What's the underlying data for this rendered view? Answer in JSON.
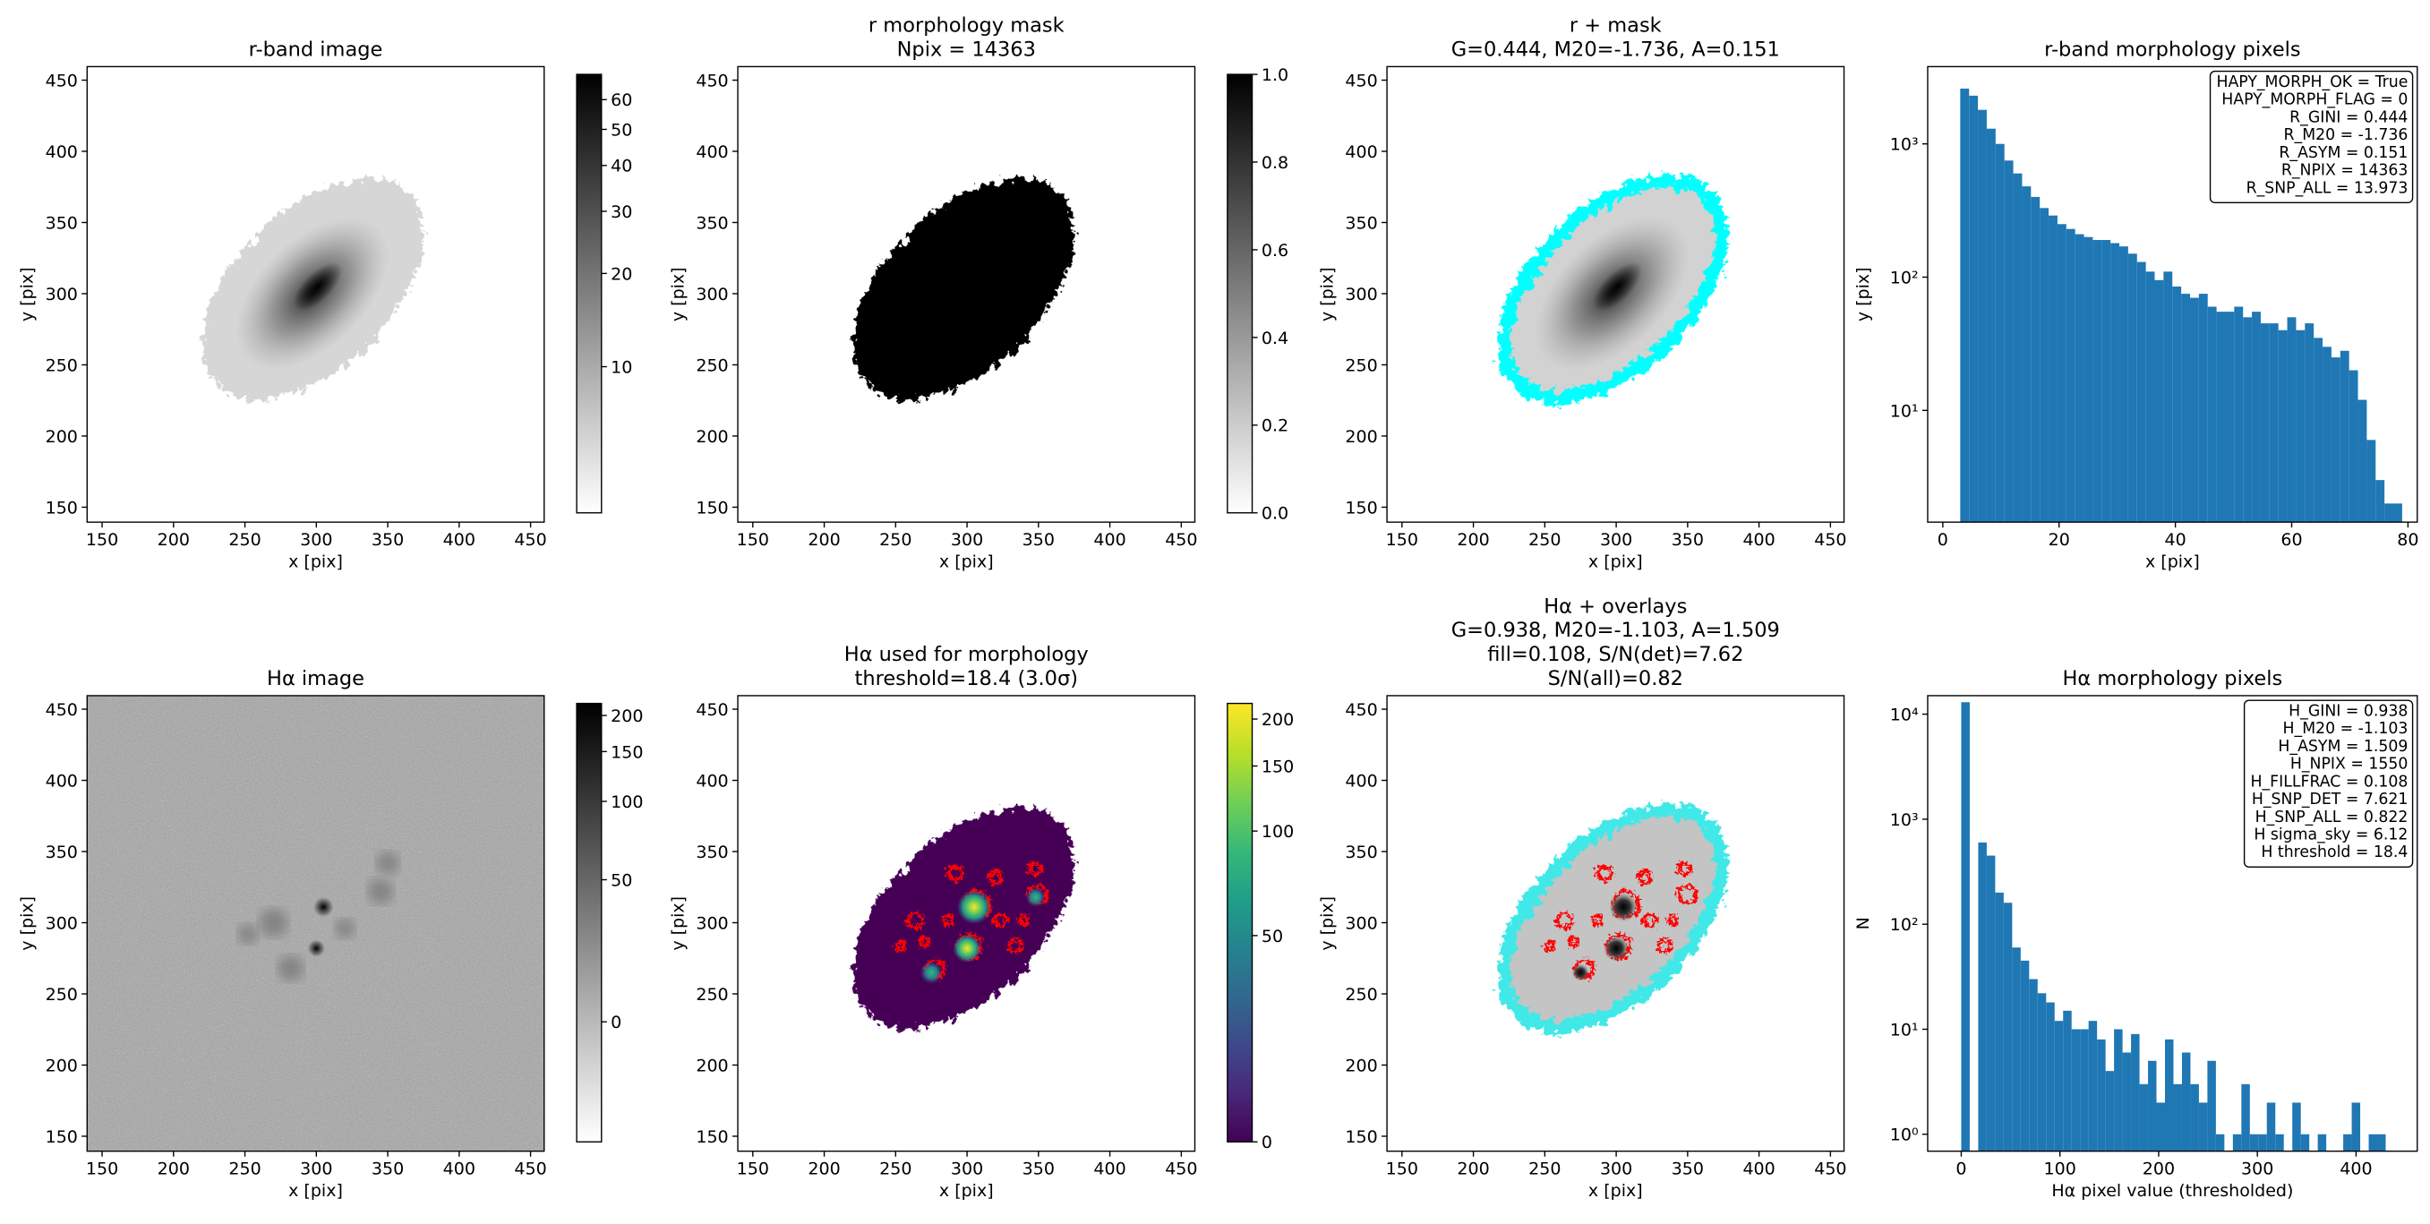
{
  "chart_data": [
    {
      "type": "image",
      "image": "r",
      "title": [
        "r-band image"
      ],
      "xlabel": "x [pix]",
      "ylabel": "y [pix]",
      "xlim": [
        139.5,
        459.5
      ],
      "ylim": [
        139.5,
        459.5
      ],
      "xticks": [
        150,
        200,
        250,
        300,
        350,
        400,
        450
      ],
      "yticks": [
        150,
        200,
        250,
        300,
        350,
        400,
        450
      ],
      "colorbar": {
        "colormap": "gray_r",
        "stretch": "asinh",
        "clim": [
          0,
          70
        ],
        "ticks": [
          10,
          20,
          30,
          40,
          50,
          60
        ]
      }
    },
    {
      "type": "image",
      "image": "mask",
      "title": [
        "r morphology mask",
        "Npix = 14363"
      ],
      "xlabel": "x [pix]",
      "ylabel": "y [pix]",
      "xlim": [
        139.5,
        459.5
      ],
      "ylim": [
        139.5,
        459.5
      ],
      "xticks": [
        150,
        200,
        250,
        300,
        350,
        400,
        450
      ],
      "yticks": [
        150,
        200,
        250,
        300,
        350,
        400,
        450
      ],
      "colorbar": {
        "colormap": "gray_r",
        "stretch": "linear",
        "clim": [
          0,
          1
        ],
        "ticks": [
          {
            "value": 0,
            "label": "0.0"
          },
          0.2,
          0.4,
          0.6,
          0.8,
          {
            "value": 1,
            "label": "1.0"
          }
        ]
      }
    },
    {
      "type": "image",
      "image": "rmask",
      "title": [
        "r + mask",
        "G=0.444, M20=-1.736, A=0.151"
      ],
      "xlabel": "x [pix]",
      "ylabel": "y [pix]",
      "xlim": [
        139.5,
        459.5
      ],
      "ylim": [
        139.5,
        459.5
      ],
      "xticks": [
        150,
        200,
        250,
        300,
        350,
        400,
        450
      ],
      "yticks": [
        150,
        200,
        250,
        300,
        350,
        400,
        450
      ]
    },
    {
      "type": "histogram",
      "title": [
        "r-band morphology pixels"
      ],
      "xlabel": "x [pix]",
      "ylabel": "y [pix]",
      "xlim": [
        -2.6,
        81.6
      ],
      "xticks": [
        0,
        20,
        40,
        60,
        80
      ],
      "log_y": true,
      "ylim": [
        1.45,
        3800
      ],
      "yticks": [
        {
          "value": 10,
          "label": "10¹"
        },
        {
          "value": 100,
          "label": "10²"
        },
        {
          "value": 1000,
          "label": "10³"
        }
      ],
      "color": "#1f77b4",
      "bins": [
        3.0,
        4.52,
        6.04,
        7.56,
        9.08,
        10.6,
        12.12,
        13.64,
        15.16,
        16.68,
        18.2,
        19.72,
        21.24,
        22.76,
        24.28,
        25.8,
        27.32,
        28.84,
        30.36,
        31.88,
        33.4,
        34.92,
        36.44,
        37.96,
        39.48,
        41.0,
        42.52,
        44.04,
        45.56,
        47.08,
        48.6,
        50.12,
        51.64,
        53.16,
        54.68,
        56.2,
        57.72,
        59.24,
        60.76,
        62.28,
        63.8,
        65.32,
        66.84,
        68.36,
        69.88,
        71.4,
        72.92,
        74.44,
        75.96,
        77.48,
        79.0
      ],
      "values": [
        2600,
        2300,
        1800,
        1300,
        1000,
        750,
        600,
        480,
        400,
        330,
        290,
        250,
        230,
        210,
        200,
        190,
        190,
        180,
        170,
        150,
        130,
        110,
        95,
        110,
        85,
        75,
        70,
        75,
        60,
        55,
        55,
        60,
        50,
        55,
        45,
        45,
        40,
        50,
        40,
        45,
        35,
        30,
        25,
        28,
        20,
        12,
        6,
        3,
        2,
        2
      ],
      "text_box": [
        "HAPY_MORPH_OK = True",
        "HAPY_MORPH_FLAG = 0",
        "R_GINI = 0.444",
        "R_M20 = -1.736",
        "R_ASYM = 0.151",
        "R_NPIX = 14363",
        "R_SNP_ALL = 13.973"
      ]
    },
    {
      "type": "image",
      "image": "ha",
      "title": [
        "Hα image"
      ],
      "xlabel": "x [pix]",
      "ylabel": "y [pix]",
      "xlim": [
        139.5,
        459.5
      ],
      "ylim": [
        139.5,
        459.5
      ],
      "xticks": [
        150,
        200,
        250,
        300,
        350,
        400,
        450
      ],
      "yticks": [
        150,
        200,
        250,
        300,
        350,
        400,
        450
      ],
      "colorbar": {
        "colormap": "gray_r",
        "stretch": "asinh",
        "clim": [
          -40,
          220
        ],
        "ticks": [
          0,
          50,
          100,
          150,
          200
        ]
      }
    },
    {
      "type": "image",
      "image": "hamorph",
      "title": [
        "Hα used for morphology",
        "threshold=18.4 (3.0σ)"
      ],
      "xlabel": "x [pix]",
      "ylabel": "y [pix]",
      "xlim": [
        139.5,
        459.5
      ],
      "ylim": [
        139.5,
        459.5
      ],
      "xticks": [
        150,
        200,
        250,
        300,
        350,
        400,
        450
      ],
      "yticks": [
        150,
        200,
        250,
        300,
        350,
        400,
        450
      ],
      "colorbar": {
        "colormap": "viridis",
        "stretch": "asinh",
        "clim": [
          0,
          220
        ],
        "ticks": [
          0,
          50,
          100,
          150,
          200
        ]
      }
    },
    {
      "type": "image",
      "image": "haover",
      "title": [
        "Hα + overlays",
        "G=0.938, M20=-1.103, A=1.509",
        "fill=0.108, S/N(det)=7.62",
        "S/N(all)=0.82"
      ],
      "xlabel": "x [pix]",
      "ylabel": "y [pix]",
      "xlim": [
        139.5,
        459.5
      ],
      "ylim": [
        139.5,
        459.5
      ],
      "xticks": [
        150,
        200,
        250,
        300,
        350,
        400,
        450
      ],
      "yticks": [
        150,
        200,
        250,
        300,
        350,
        400,
        450
      ]
    },
    {
      "type": "histogram",
      "title": [
        "Hα morphology pixels"
      ],
      "xlabel": "Hα pixel value (thresholded)",
      "ylabel": "N",
      "xlim": [
        -34,
        462
      ],
      "xticks": [
        0,
        100,
        200,
        300,
        400
      ],
      "log_y": true,
      "ylim": [
        0.69,
        15000
      ],
      "yticks": [
        {
          "value": 1,
          "label": "10⁰"
        },
        {
          "value": 10,
          "label": "10¹"
        },
        {
          "value": 100,
          "label": "10²"
        },
        {
          "value": 1000,
          "label": "10³"
        },
        {
          "value": 10000,
          "label": "10⁴"
        }
      ],
      "color": "#1f77b4",
      "bins": [
        0,
        8.6,
        17.2,
        25.8,
        34.4,
        43,
        51.6,
        60.2,
        68.8,
        77.4,
        86,
        94.6,
        103.2,
        111.8,
        120.4,
        129,
        137.6,
        146.2,
        154.8,
        163.4,
        172,
        180.6,
        189.2,
        197.8,
        206.4,
        215,
        223.6,
        232.2,
        240.8,
        249.4,
        258,
        266.6,
        275.2,
        283.8,
        292.4,
        301,
        309.6,
        318.2,
        326.8,
        335.4,
        344,
        352.6,
        361.2,
        369.8,
        378.4,
        387,
        395.6,
        404.2,
        412.8,
        421.4,
        430
      ],
      "values": [
        13000,
        0,
        600,
        450,
        200,
        160,
        60,
        45,
        30,
        22,
        18,
        12,
        15,
        10,
        10,
        12,
        8,
        4,
        10,
        6,
        9,
        3,
        5,
        2,
        8,
        3,
        6,
        3,
        2,
        5,
        1,
        0,
        1,
        3,
        1,
        1,
        2,
        1,
        0,
        2,
        1,
        0,
        1,
        0,
        0,
        1,
        2,
        0,
        1,
        1
      ],
      "text_box": [
        "H_GINI = 0.938",
        "H_M20 = -1.103",
        "H_ASYM = 1.509",
        "H_NPIX = 1550",
        "H_FILLFRAC = 0.108",
        "H_SNP_DET = 7.621",
        "H_SNP_ALL = 0.822",
        "H sigma_sky = 6.12",
        "H threshold = 18.4"
      ]
    }
  ]
}
